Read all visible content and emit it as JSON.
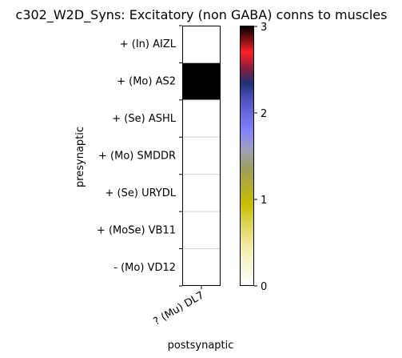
{
  "chart_data": {
    "type": "heatmap",
    "title": "c302_W2D_Syns: Excitatory (non GABA) conns to muscles",
    "xlabel": "postsynaptic",
    "ylabel": "presynaptic",
    "x_categories": [
      "? (Mu) DL7"
    ],
    "y_categories": [
      "+ (In) AIZL",
      "+ (Mo) AS2",
      "+ (Se) ASHL",
      "+ (Mo) SMDDR",
      "+ (Se) URYDL",
      "+ (MoSe) VB11",
      "- (Mo) VD12"
    ],
    "values": [
      [
        0
      ],
      [
        3
      ],
      [
        0
      ],
      [
        0
      ],
      [
        0
      ],
      [
        0
      ],
      [
        0
      ]
    ],
    "colorbar": {
      "min": 0,
      "max": 3,
      "ticks": [
        0,
        1,
        2,
        3
      ],
      "colormap_stops": [
        {
          "v": 0.0,
          "c": "#ffffff"
        },
        {
          "v": 0.15,
          "c": "#f2ecab"
        },
        {
          "v": 0.32,
          "c": "#c9bd00"
        },
        {
          "v": 0.45,
          "c": "#9e9e5a"
        },
        {
          "v": 0.52,
          "c": "#a0a0b4"
        },
        {
          "v": 0.6,
          "c": "#8282ff"
        },
        {
          "v": 0.72,
          "c": "#5050c0"
        },
        {
          "v": 0.78,
          "c": "#1e3278"
        },
        {
          "v": 0.84,
          "c": "#8c1e3c"
        },
        {
          "v": 0.9,
          "c": "#ff1e28"
        },
        {
          "v": 1.0,
          "c": "#000000"
        }
      ]
    },
    "grid_color": "#d3d3d3"
  }
}
